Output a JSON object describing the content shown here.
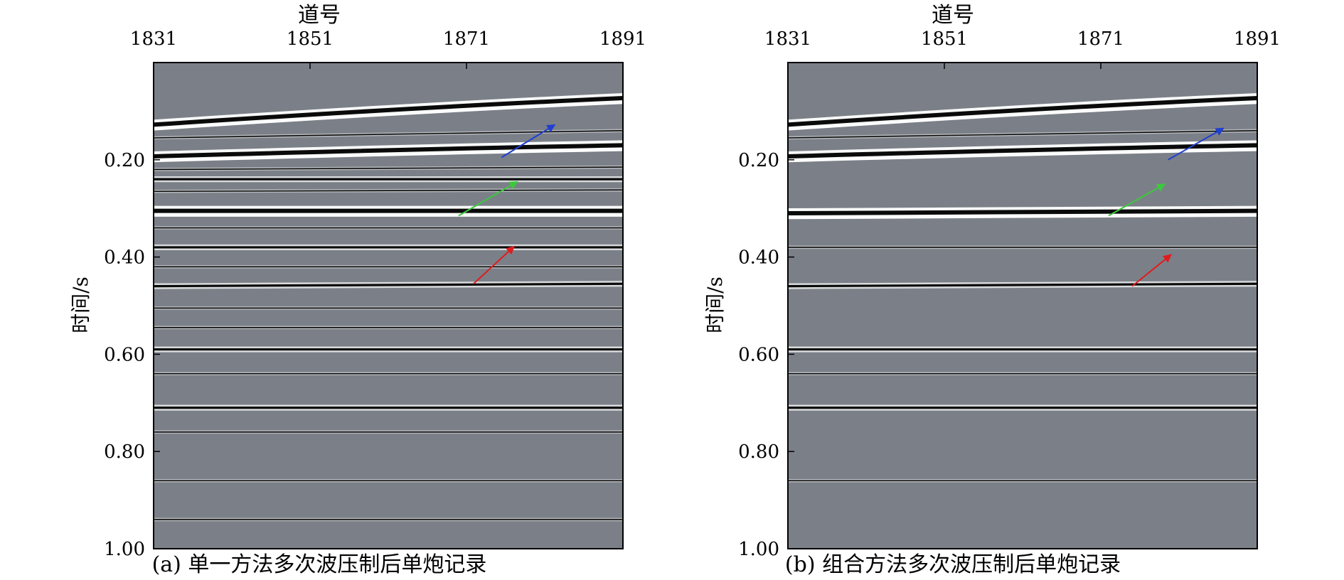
{
  "colors": {
    "background": "#7b8088",
    "arrow_blue": "#1f3fd0",
    "arrow_green": "#3cc83c",
    "arrow_red": "#e01c1c"
  },
  "chart_data": [
    {
      "type": "heatmap",
      "title": "",
      "caption": "(a) 单一方法多次波压制后单炮记录",
      "xlabel": "道号",
      "ylabel": "时间/s",
      "xlim": [
        1831,
        1891
      ],
      "ylim": [
        1.0,
        0.0
      ],
      "x_ticks": [
        "1831",
        "1851",
        "1871",
        "1891"
      ],
      "y_ticks": [
        "0.20",
        "0.40",
        "0.60",
        "0.80",
        "1.00"
      ],
      "x_axis_position": "top",
      "grid": false,
      "events": [
        {
          "kind": "strong",
          "t_left": 0.128,
          "t_right": 0.073
        },
        {
          "kind": "strong",
          "t_left": 0.193,
          "t_right": 0.17
        },
        {
          "kind": "strong",
          "t_left": 0.305,
          "t_right": 0.305
        },
        {
          "kind": "medium",
          "t_left": 0.24,
          "t_right": 0.24
        },
        {
          "kind": "medium",
          "t_left": 0.38,
          "t_right": 0.38
        },
        {
          "kind": "medium",
          "t_left": 0.46,
          "t_right": 0.455
        },
        {
          "kind": "medium",
          "t_left": 0.59,
          "t_right": 0.59
        },
        {
          "kind": "medium",
          "t_left": 0.71,
          "t_right": 0.71
        },
        {
          "kind": "weak",
          "t_left": 0.155,
          "t_right": 0.14
        },
        {
          "kind": "weak",
          "t_left": 0.22,
          "t_right": 0.215
        },
        {
          "kind": "weak",
          "t_left": 0.265,
          "t_right": 0.262
        },
        {
          "kind": "weak",
          "t_left": 0.34,
          "t_right": 0.34
        },
        {
          "kind": "weak",
          "t_left": 0.42,
          "t_right": 0.42
        },
        {
          "kind": "weak",
          "t_left": 0.505,
          "t_right": 0.505
        },
        {
          "kind": "weak",
          "t_left": 0.545,
          "t_right": 0.545
        },
        {
          "kind": "weak",
          "t_left": 0.64,
          "t_right": 0.64
        },
        {
          "kind": "weak",
          "t_left": 0.76,
          "t_right": 0.76
        },
        {
          "kind": "weak",
          "t_left": 0.86,
          "t_right": 0.86
        },
        {
          "kind": "weak",
          "t_left": 0.94,
          "t_right": 0.94
        }
      ],
      "arrows": [
        {
          "color": "blue",
          "from": [
            1875.5,
            0.195
          ],
          "to": [
            1882.3,
            0.128
          ]
        },
        {
          "color": "green",
          "from": [
            1870.0,
            0.315
          ],
          "to": [
            1877.5,
            0.245
          ]
        },
        {
          "color": "red",
          "from": [
            1871.9,
            0.455
          ],
          "to": [
            1877.1,
            0.378
          ]
        }
      ]
    },
    {
      "type": "heatmap",
      "title": "",
      "caption": "(b) 组合方法多次波压制后单炮记录",
      "xlabel": "道号",
      "ylabel": "时间/s",
      "xlim": [
        1831,
        1891
      ],
      "ylim": [
        1.0,
        0.0
      ],
      "x_ticks": [
        "1831",
        "1851",
        "1871",
        "1891"
      ],
      "y_ticks": [
        "0.20",
        "0.40",
        "0.60",
        "0.80",
        "1.00"
      ],
      "x_axis_position": "top",
      "grid": false,
      "events": [
        {
          "kind": "strong",
          "t_left": 0.128,
          "t_right": 0.073
        },
        {
          "kind": "strong",
          "t_left": 0.193,
          "t_right": 0.17
        },
        {
          "kind": "strong",
          "t_left": 0.31,
          "t_right": 0.305
        },
        {
          "kind": "medium",
          "t_left": 0.46,
          "t_right": 0.455
        },
        {
          "kind": "medium",
          "t_left": 0.59,
          "t_right": 0.59
        },
        {
          "kind": "medium",
          "t_left": 0.71,
          "t_right": 0.71
        },
        {
          "kind": "weak",
          "t_left": 0.155,
          "t_right": 0.14
        },
        {
          "kind": "weak",
          "t_left": 0.38,
          "t_right": 0.38
        },
        {
          "kind": "weak",
          "t_left": 0.64,
          "t_right": 0.64
        },
        {
          "kind": "weak",
          "t_left": 0.86,
          "t_right": 0.86
        }
      ],
      "arrows": [
        {
          "color": "blue",
          "from": [
            1879.6,
            0.2
          ],
          "to": [
            1886.7,
            0.135
          ]
        },
        {
          "color": "green",
          "from": [
            1872.0,
            0.315
          ],
          "to": [
            1879.2,
            0.25
          ]
        },
        {
          "color": "red",
          "from": [
            1875.0,
            0.46
          ],
          "to": [
            1880.0,
            0.395
          ]
        }
      ]
    }
  ]
}
